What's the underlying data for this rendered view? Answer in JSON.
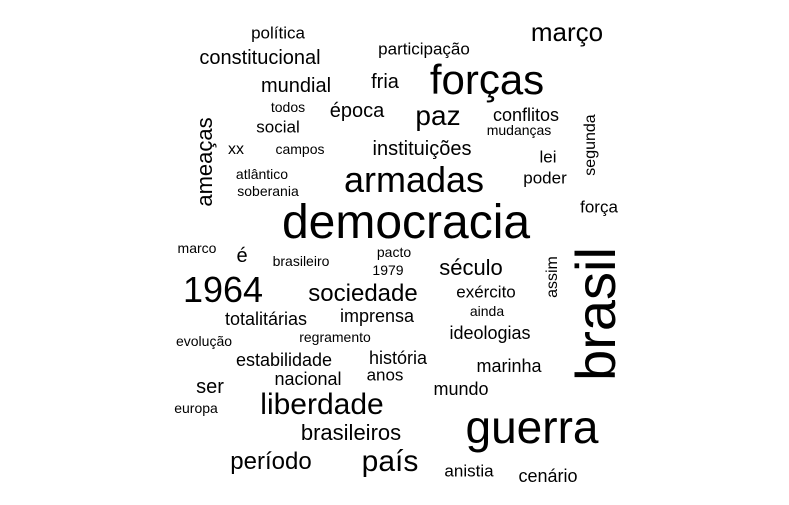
{
  "words": [
    {
      "text": "democracia"
    },
    {
      "text": "guerra"
    },
    {
      "text": "brasil"
    },
    {
      "text": "forças"
    },
    {
      "text": "armadas"
    },
    {
      "text": "1964"
    },
    {
      "text": "liberdade"
    },
    {
      "text": "país"
    },
    {
      "text": "março"
    },
    {
      "text": "paz"
    },
    {
      "text": "sociedade"
    },
    {
      "text": "século"
    },
    {
      "text": "período"
    },
    {
      "text": "brasileiros"
    },
    {
      "text": "ameaças"
    },
    {
      "text": "constitucional"
    },
    {
      "text": "mundial"
    },
    {
      "text": "época"
    },
    {
      "text": "instituições"
    },
    {
      "text": "conflitos"
    },
    {
      "text": "participação"
    },
    {
      "text": "política"
    },
    {
      "text": "fria"
    },
    {
      "text": "social"
    },
    {
      "text": "segunda"
    },
    {
      "text": "lei"
    },
    {
      "text": "poder"
    },
    {
      "text": "força"
    },
    {
      "text": "todos"
    },
    {
      "text": "mudanças"
    },
    {
      "text": "xx"
    },
    {
      "text": "campos"
    },
    {
      "text": "atlântico"
    },
    {
      "text": "soberania"
    },
    {
      "text": "marco"
    },
    {
      "text": "é"
    },
    {
      "text": "pacto"
    },
    {
      "text": "brasileiro"
    },
    {
      "text": "1979"
    },
    {
      "text": "assim"
    },
    {
      "text": "exército"
    },
    {
      "text": "ainda"
    },
    {
      "text": "imprensa"
    },
    {
      "text": "totalitárias"
    },
    {
      "text": "ideologias"
    },
    {
      "text": "regramento"
    },
    {
      "text": "evolução"
    },
    {
      "text": "estabilidade"
    },
    {
      "text": "história"
    },
    {
      "text": "marinha"
    },
    {
      "text": "anos"
    },
    {
      "text": "nacional"
    },
    {
      "text": "ser"
    },
    {
      "text": "mundo"
    },
    {
      "text": "europa"
    },
    {
      "text": "anistia"
    },
    {
      "text": "cenário"
    }
  ]
}
